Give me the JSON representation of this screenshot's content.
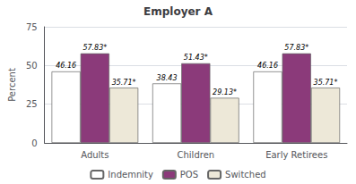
{
  "chart_data": {
    "type": "bar",
    "title": "Employer A",
    "ylabel": "Percent",
    "categories": [
      "Adults",
      "Children",
      "Early Retirees"
    ],
    "series": [
      {
        "name": "Indemnity",
        "color": "white",
        "values": [
          46.16,
          38.43,
          46.16
        ],
        "value_labels": [
          "46.16",
          "38.43",
          "46.16"
        ]
      },
      {
        "name": "POS",
        "color": "#8B3A7A",
        "values": [
          57.83,
          51.43,
          57.83
        ],
        "value_labels": [
          "57.83*",
          "51.43*",
          "57.83*"
        ]
      },
      {
        "name": "Switched",
        "color": "#EDE8D8",
        "values": [
          35.71,
          29.13,
          35.71
        ],
        "value_labels": [
          "35.71*",
          "29.13*",
          "35.71*"
        ]
      }
    ],
    "ylim": [
      0,
      75
    ],
    "yticks": [
      0,
      25,
      50,
      75
    ],
    "grid": true,
    "legend": "bottom",
    "data_labels": true
  }
}
